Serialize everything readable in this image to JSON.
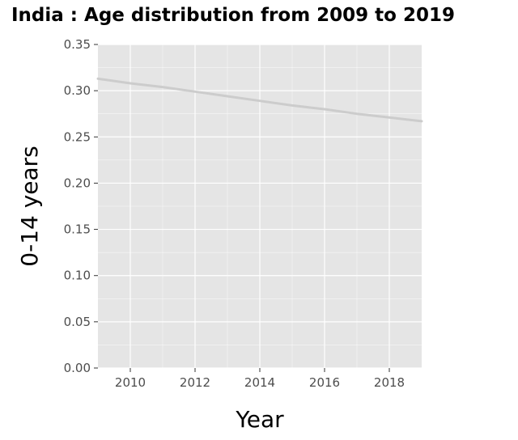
{
  "chart_data": {
    "type": "line",
    "title": "India : Age distribution from 2009 to 2019",
    "xlabel": "Year",
    "ylabel": "0-14 years",
    "xlim": [
      2009,
      2019
    ],
    "ylim": [
      0,
      0.35
    ],
    "x_ticks": [
      2010,
      2012,
      2014,
      2016,
      2018
    ],
    "y_ticks": [
      "0.00",
      "0.05",
      "0.10",
      "0.15",
      "0.20",
      "0.25",
      "0.30",
      "0.35"
    ],
    "grid": true,
    "colors": {
      "panel": "#e5e5e5",
      "grid": "#ffffff",
      "line": "#cccccc"
    },
    "series": [
      {
        "x": [
          2009,
          2010,
          2011,
          2012,
          2013,
          2014,
          2015,
          2016,
          2017,
          2018,
          2019
        ],
        "values": [
          0.313,
          0.308,
          0.304,
          0.299,
          0.294,
          0.289,
          0.284,
          0.28,
          0.275,
          0.271,
          0.267
        ]
      }
    ]
  }
}
